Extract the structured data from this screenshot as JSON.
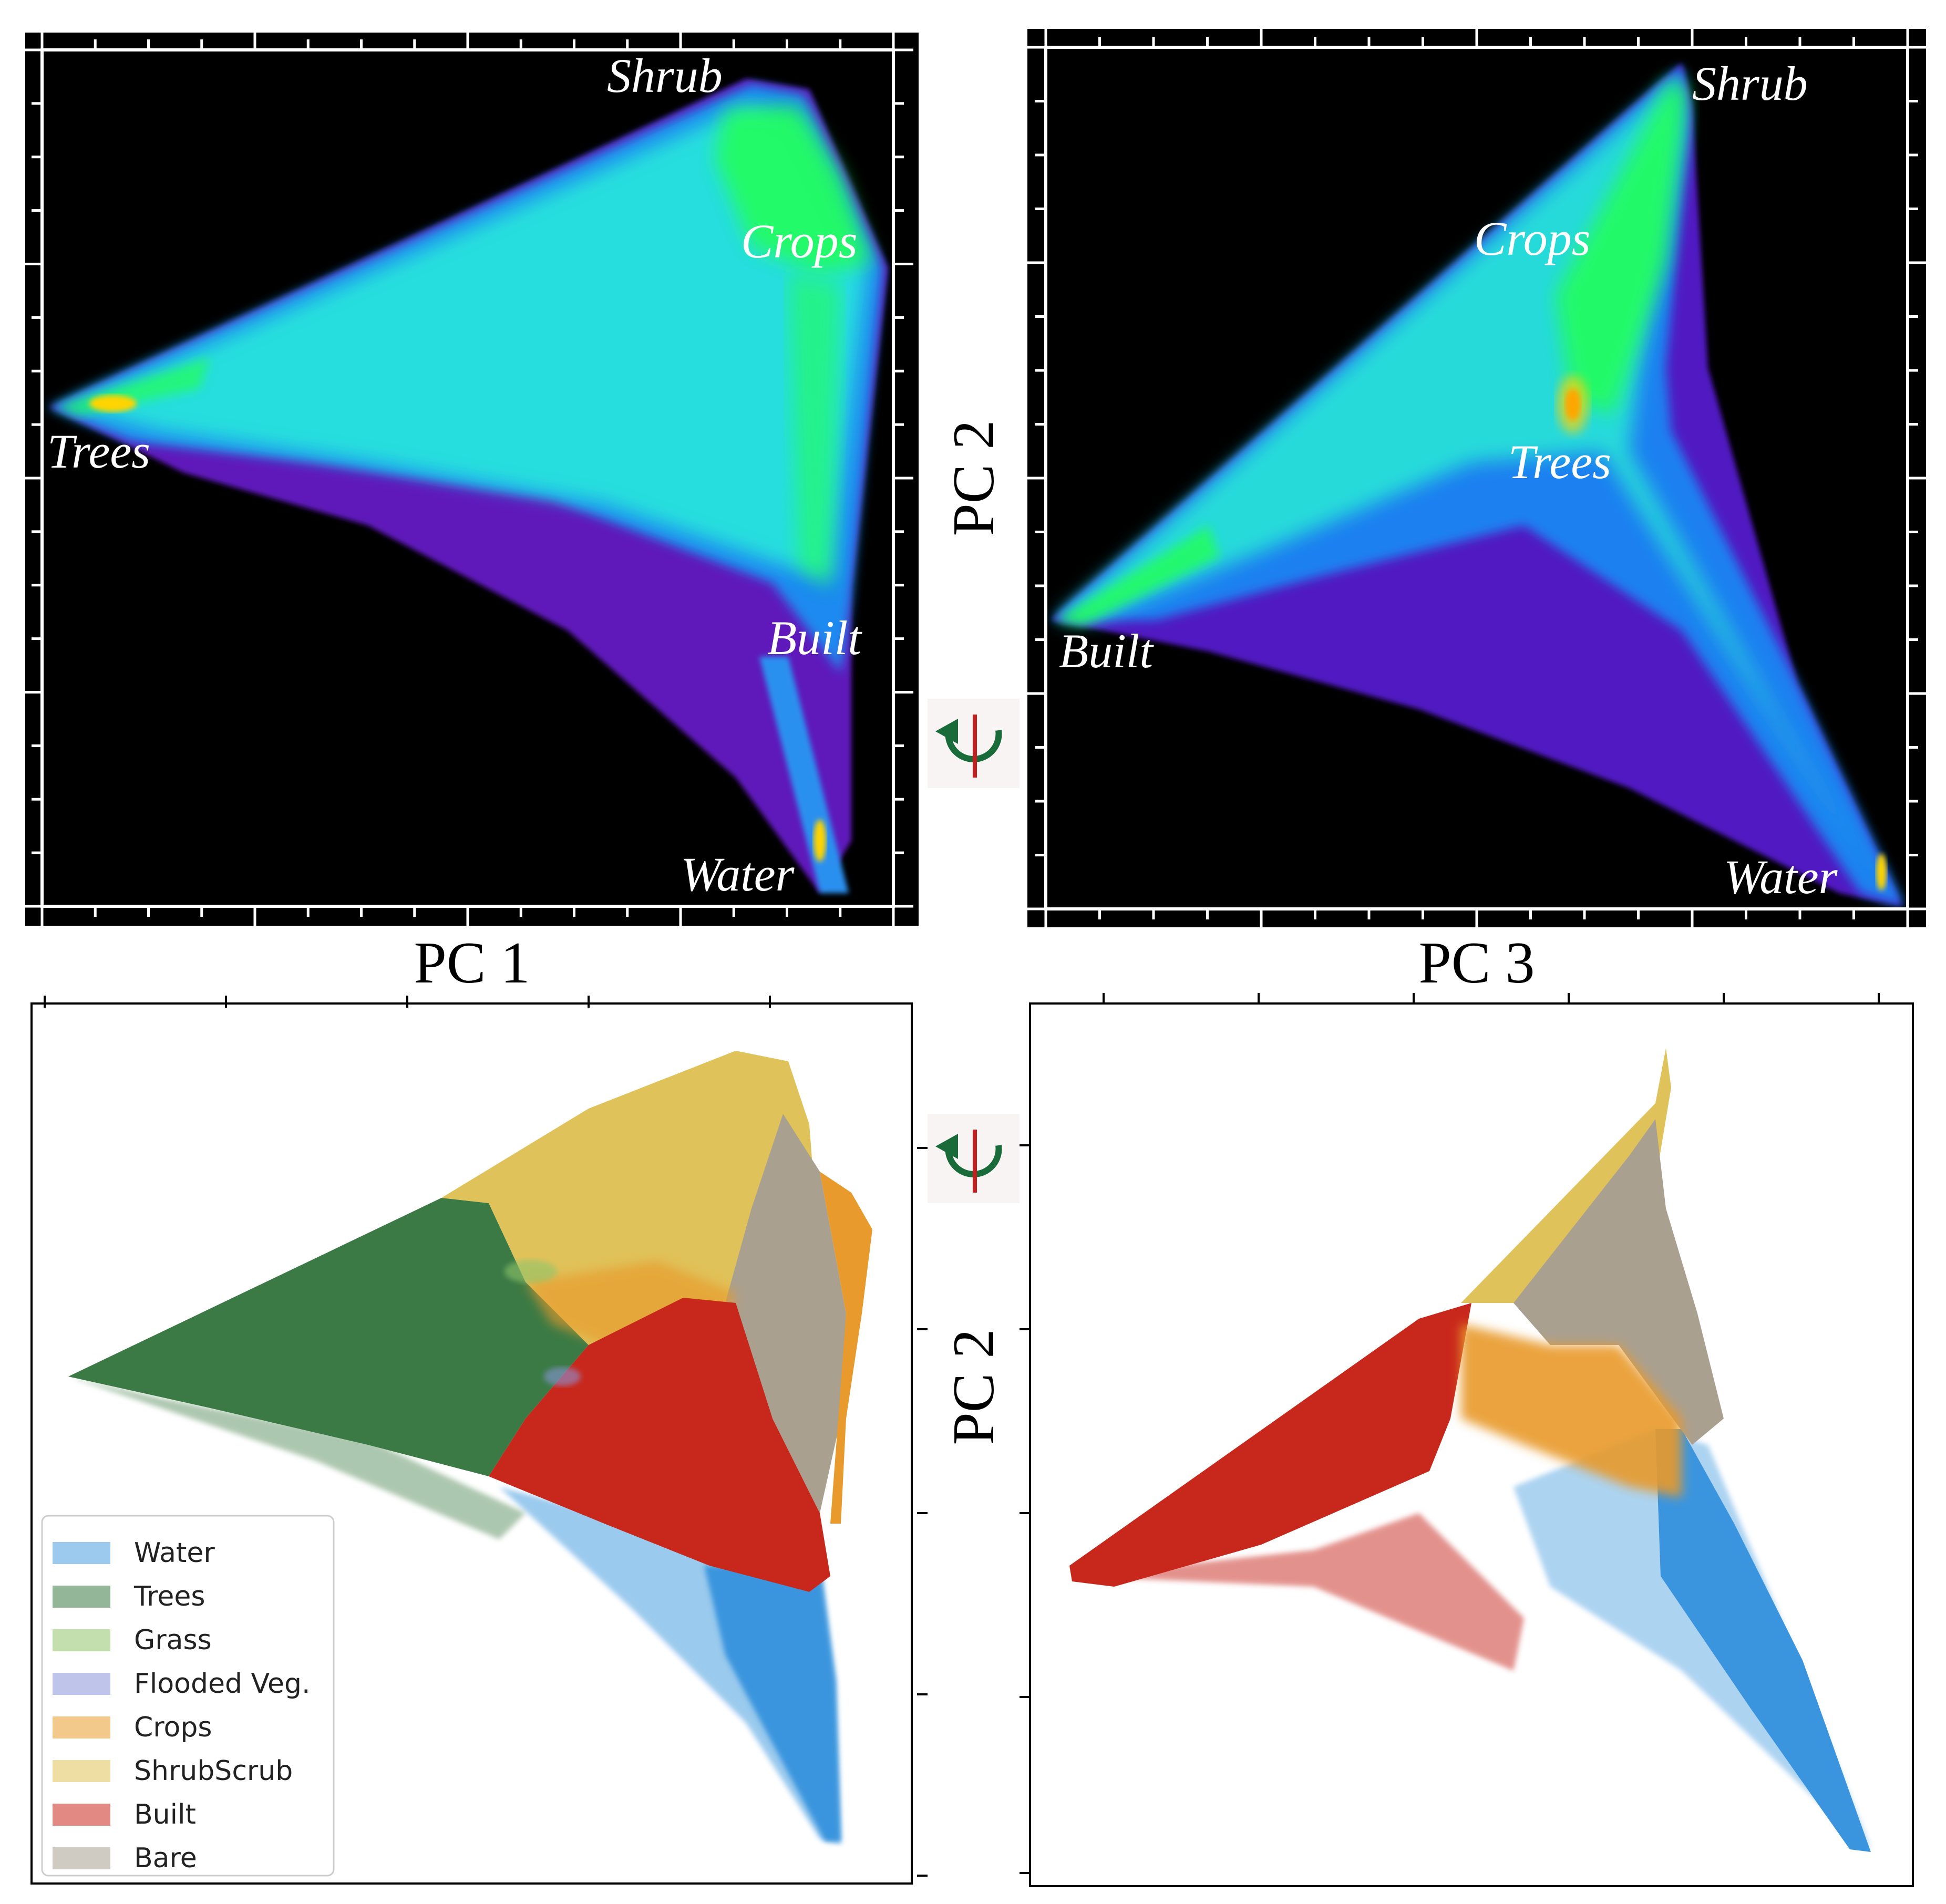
{
  "chart_data": [
    {
      "type": "heatmap",
      "title": "",
      "xlabel": "PC 1",
      "ylabel": "",
      "regions": [
        {
          "label": "Shrub"
        },
        {
          "label": "Crops"
        },
        {
          "label": "Trees"
        },
        {
          "label": "Built"
        },
        {
          "label": "Water"
        }
      ]
    },
    {
      "type": "heatmap",
      "title": "",
      "xlabel": "PC 3",
      "ylabel": "PC 2",
      "regions": [
        {
          "label": "Shrub"
        },
        {
          "label": "Crops"
        },
        {
          "label": "Trees"
        },
        {
          "label": "Built"
        },
        {
          "label": "Water"
        }
      ]
    },
    {
      "type": "scatter",
      "title": "",
      "xlabel": "",
      "ylabel": "",
      "legend_position": "lower-left",
      "series": [
        {
          "name": "Water",
          "color": "#4a9fe0"
        },
        {
          "name": "Trees",
          "color": "#3b7a45"
        },
        {
          "name": "Grass",
          "color": "#8fc46a"
        },
        {
          "name": "Flooded Veg.",
          "color": "#8a94d8"
        },
        {
          "name": "Crops",
          "color": "#e89a2c"
        },
        {
          "name": "ShrubScrub",
          "color": "#e0c25a"
        },
        {
          "name": "Built",
          "color": "#c8281c"
        },
        {
          "name": "Bare",
          "color": "#aaa090"
        }
      ]
    },
    {
      "type": "scatter",
      "title": "",
      "xlabel": "",
      "ylabel": "PC 2",
      "series": [
        {
          "name": "Water",
          "color": "#4a9fe0"
        },
        {
          "name": "Crops",
          "color": "#e89a2c"
        },
        {
          "name": "ShrubScrub",
          "color": "#e0c25a"
        },
        {
          "name": "Built",
          "color": "#c8281c"
        },
        {
          "name": "Bare",
          "color": "#aaa090"
        }
      ]
    }
  ],
  "colors": {
    "heat_background": "#000000",
    "heat_low": "#7a1fe0",
    "heat_mid": "#1a8cff",
    "heat_cyan": "#22e0e0",
    "heat_high": "#22ff44",
    "rotate_icon_arrow": "#1a6b3a",
    "rotate_icon_axis": "#c02020"
  },
  "icons": {
    "rotate_icon": "rotate-axis-icon"
  }
}
